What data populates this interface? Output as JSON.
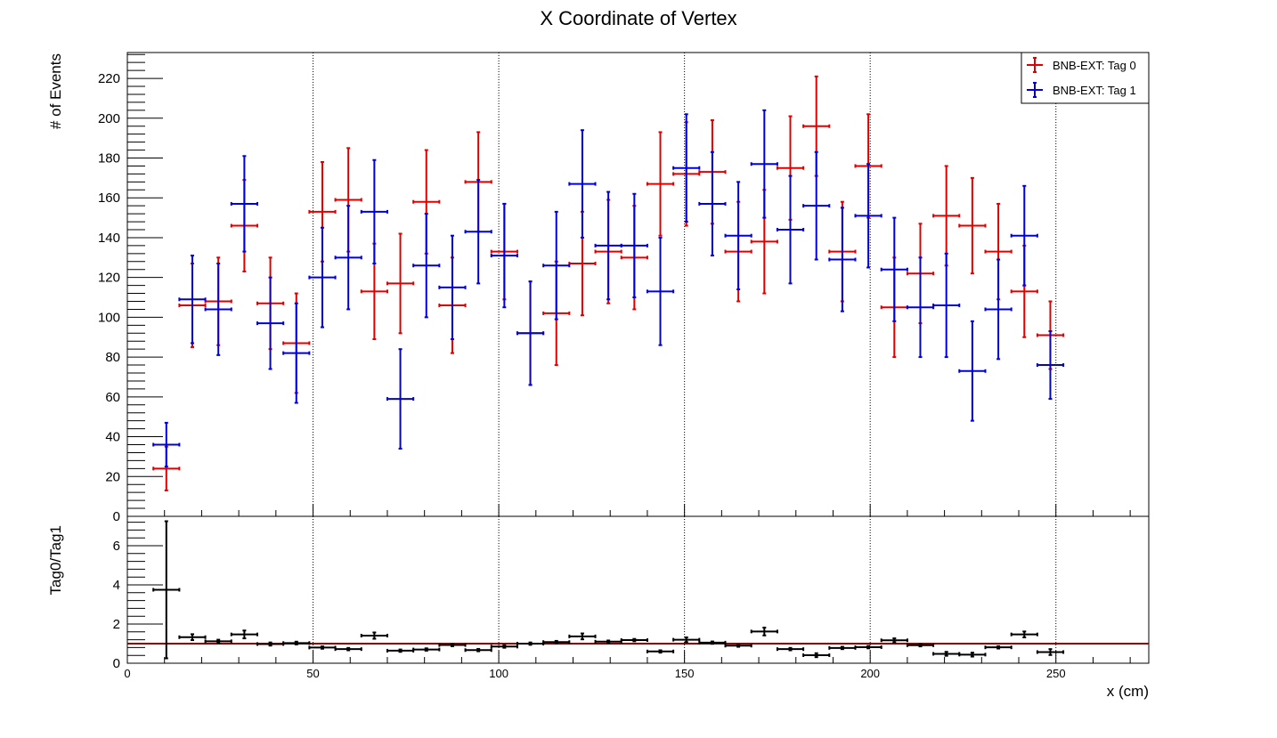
{
  "chart_data": [
    {
      "type": "scatter",
      "panel": "main",
      "title": "X Coordinate of Vertex",
      "ylabel": "# of Events",
      "xlim": [
        0,
        275
      ],
      "ylim": [
        0,
        233
      ],
      "yticks": [
        0,
        20,
        40,
        60,
        80,
        100,
        120,
        140,
        160,
        180,
        200,
        220
      ],
      "xgrid": [
        50,
        100,
        150,
        200,
        250
      ],
      "bin_half_width": 3.5,
      "legend_position": "top-right",
      "series": [
        {
          "name": "BNB-EXT: Tag 0",
          "color": "#e00000",
          "x": [
            10.5,
            17.5,
            24.5,
            31.5,
            38.5,
            45.5,
            52.5,
            59.5,
            66.5,
            73.5,
            80.5,
            87.5,
            94.5,
            101.5,
            108.5,
            115.5,
            122.5,
            129.5,
            136.5,
            143.5,
            150.5,
            157.5,
            164.5,
            171.5,
            178.5,
            185.5,
            192.5,
            199.5,
            206.5,
            213.5,
            220.5,
            227.5,
            234.5,
            241.5,
            248.5
          ],
          "y": [
            24,
            106,
            108,
            146,
            107,
            87,
            153,
            159,
            113,
            117,
            158,
            106,
            168,
            133,
            92,
            102,
            127,
            133,
            130,
            167,
            172,
            173,
            133,
            138,
            175,
            196,
            133,
            176,
            105,
            122,
            151,
            146,
            133,
            113,
            91
          ],
          "yerr": [
            11,
            21,
            22,
            23,
            23,
            25,
            25,
            26,
            24,
            25,
            26,
            24,
            25,
            24,
            26,
            26,
            26,
            26,
            26,
            26,
            26,
            26,
            25,
            26,
            26,
            25,
            25,
            26,
            25,
            25,
            25,
            24,
            24,
            23,
            17
          ]
        },
        {
          "name": "BNB-EXT: Tag 1",
          "color": "#0000dd",
          "x": [
            10.5,
            17.5,
            24.5,
            31.5,
            38.5,
            45.5,
            52.5,
            59.5,
            66.5,
            73.5,
            80.5,
            87.5,
            94.5,
            101.5,
            108.5,
            115.5,
            122.5,
            129.5,
            136.5,
            143.5,
            150.5,
            157.5,
            164.5,
            171.5,
            178.5,
            185.5,
            192.5,
            199.5,
            206.5,
            213.5,
            220.5,
            227.5,
            234.5,
            241.5,
            248.5
          ],
          "y": [
            36,
            109,
            104,
            157,
            97,
            82,
            120,
            130,
            153,
            59,
            126,
            115,
            143,
            131,
            92,
            126,
            167,
            136,
            136,
            113,
            175,
            157,
            141,
            177,
            144,
            156,
            129,
            151,
            124,
            105,
            106,
            73,
            104,
            141,
            76
          ],
          "yerr": [
            11,
            22,
            23,
            24,
            23,
            25,
            25,
            26,
            26,
            25,
            26,
            26,
            26,
            26,
            26,
            27,
            27,
            27,
            26,
            27,
            27,
            26,
            27,
            27,
            27,
            27,
            26,
            26,
            26,
            25,
            26,
            25,
            25,
            25,
            17
          ]
        }
      ]
    },
    {
      "type": "scatter",
      "panel": "ratio",
      "xlabel": "x (cm)",
      "ylabel": "Tag0/Tag1",
      "xlim": [
        0,
        275
      ],
      "ylim": [
        0,
        7.5
      ],
      "yticks": [
        0,
        2,
        4,
        6
      ],
      "xticks": [
        0,
        50,
        100,
        150,
        200,
        250
      ],
      "xgrid": [
        50,
        100,
        150,
        200,
        250
      ],
      "reference_line": 1,
      "reference_line_color": "#8b0000",
      "series": [
        {
          "name": "",
          "color": "#000000",
          "x": [
            10.5,
            17.5,
            24.5,
            31.5,
            38.5,
            45.5,
            52.5,
            59.5,
            66.5,
            73.5,
            80.5,
            87.5,
            94.5,
            101.5,
            108.5,
            115.5,
            122.5,
            129.5,
            136.5,
            143.5,
            150.5,
            157.5,
            164.5,
            171.5,
            178.5,
            185.5,
            192.5,
            199.5,
            206.5,
            213.5,
            220.5,
            227.5,
            234.5,
            241.5,
            248.5
          ],
          "y": [
            3.75,
            1.33,
            1.12,
            1.47,
            0.98,
            1.03,
            0.8,
            0.72,
            1.41,
            0.64,
            0.7,
            0.93,
            0.67,
            0.85,
            1.0,
            1.08,
            1.37,
            1.1,
            1.18,
            0.6,
            1.2,
            1.05,
            0.9,
            1.62,
            0.72,
            0.41,
            0.78,
            0.82,
            1.17,
            0.92,
            0.48,
            0.44,
            0.81,
            1.47,
            0.57
          ],
          "yerr": [
            3.5,
            0.15,
            0.08,
            0.2,
            0.08,
            0.07,
            0.06,
            0.06,
            0.16,
            0.06,
            0.06,
            0.06,
            0.06,
            0.06,
            0.06,
            0.06,
            0.15,
            0.06,
            0.06,
            0.06,
            0.12,
            0.06,
            0.06,
            0.2,
            0.06,
            0.1,
            0.06,
            0.06,
            0.1,
            0.06,
            0.1,
            0.1,
            0.06,
            0.15,
            0.15
          ]
        }
      ]
    }
  ]
}
